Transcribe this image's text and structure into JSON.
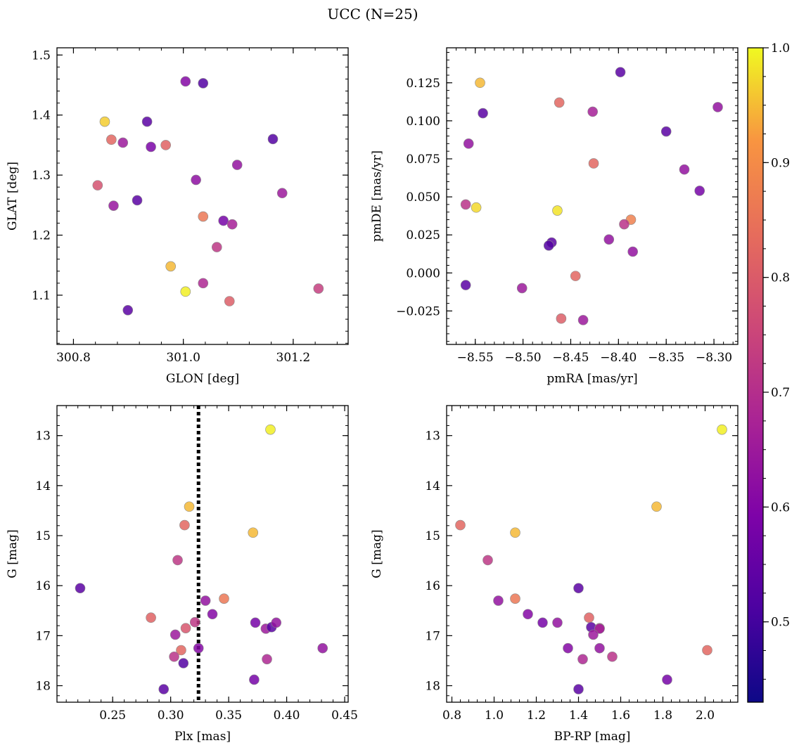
{
  "figure": {
    "title": "UCC (N=25)"
  },
  "colorbar": {
    "cmap": "plasma",
    "range": [
      0.43,
      1.0
    ],
    "ticks": [
      0.5,
      0.6,
      0.7,
      0.8,
      0.9,
      1.0
    ],
    "tick_labels": [
      "0.5",
      "0.6",
      "0.7",
      "0.8",
      "0.9",
      "1.0"
    ]
  },
  "chart_data": [
    {
      "type": "scatter",
      "xlabel": "GLON [deg]",
      "ylabel": "GLAT [deg]",
      "xlim": [
        300.77,
        301.3
      ],
      "ylim": [
        1.018,
        1.512
      ],
      "xticks": [
        300.8,
        301.0,
        301.2
      ],
      "xtick_labels": [
        "300.8",
        "301.0",
        "301.2"
      ],
      "yticks": [
        1.1,
        1.2,
        1.3,
        1.4,
        1.5
      ],
      "ytick_labels": [
        "1.1",
        "1.2",
        "1.3",
        "1.4",
        "1.5"
      ],
      "points": [
        {
          "x": 301.004,
          "y": 1.456,
          "c": 0.55
        },
        {
          "x": 301.036,
          "y": 1.453,
          "c": 0.46
        },
        {
          "x": 300.857,
          "y": 1.389,
          "c": 0.96
        },
        {
          "x": 300.934,
          "y": 1.389,
          "c": 0.47
        },
        {
          "x": 300.869,
          "y": 1.359,
          "c": 0.8
        },
        {
          "x": 300.89,
          "y": 1.354,
          "c": 0.6
        },
        {
          "x": 300.941,
          "y": 1.347,
          "c": 0.53
        },
        {
          "x": 300.968,
          "y": 1.35,
          "c": 0.79
        },
        {
          "x": 301.163,
          "y": 1.36,
          "c": 0.46
        },
        {
          "x": 301.098,
          "y": 1.317,
          "c": 0.58
        },
        {
          "x": 301.023,
          "y": 1.292,
          "c": 0.57
        },
        {
          "x": 300.844,
          "y": 1.283,
          "c": 0.75
        },
        {
          "x": 301.18,
          "y": 1.27,
          "c": 0.6
        },
        {
          "x": 300.916,
          "y": 1.258,
          "c": 0.47
        },
        {
          "x": 300.873,
          "y": 1.249,
          "c": 0.59
        },
        {
          "x": 301.036,
          "y": 1.231,
          "c": 0.84
        },
        {
          "x": 301.073,
          "y": 1.224,
          "c": 0.52
        },
        {
          "x": 301.089,
          "y": 1.218,
          "c": 0.62
        },
        {
          "x": 301.061,
          "y": 1.18,
          "c": 0.68
        },
        {
          "x": 300.977,
          "y": 1.148,
          "c": 0.94
        },
        {
          "x": 301.004,
          "y": 1.106,
          "c": 0.99
        },
        {
          "x": 301.036,
          "y": 1.12,
          "c": 0.64
        },
        {
          "x": 301.084,
          "y": 1.09,
          "c": 0.78
        },
        {
          "x": 301.246,
          "y": 1.111,
          "c": 0.7
        },
        {
          "x": 300.899,
          "y": 1.075,
          "c": 0.47
        }
      ]
    },
    {
      "type": "scatter",
      "xlabel": "pmRA [mas/yr]",
      "ylabel": "pmDE [mas/yr]",
      "xlim": [
        -8.58,
        -8.275
      ],
      "ylim": [
        -0.047,
        0.148
      ],
      "xticks": [
        -8.55,
        -8.5,
        -8.45,
        -8.4,
        -8.35,
        -8.3
      ],
      "xtick_labels": [
        "−8.55",
        "−8.50",
        "−8.45",
        "−8.40",
        "−8.35",
        "−8.30"
      ],
      "yticks": [
        -0.025,
        0.0,
        0.025,
        0.05,
        0.075,
        0.1,
        0.125
      ],
      "ytick_labels": [
        "−0.025",
        "0.000",
        "0.025",
        "0.050",
        "0.075",
        "0.100",
        "0.125"
      ],
      "points": [
        {
          "x": -8.398,
          "y": 0.132,
          "c": 0.47
        },
        {
          "x": -8.545,
          "y": 0.125,
          "c": 0.94
        },
        {
          "x": -8.462,
          "y": 0.112,
          "c": 0.8
        },
        {
          "x": -8.427,
          "y": 0.106,
          "c": 0.62
        },
        {
          "x": -8.296,
          "y": 0.109,
          "c": 0.58
        },
        {
          "x": -8.542,
          "y": 0.105,
          "c": 0.47
        },
        {
          "x": -8.35,
          "y": 0.093,
          "c": 0.47
        },
        {
          "x": -8.557,
          "y": 0.085,
          "c": 0.58
        },
        {
          "x": -8.426,
          "y": 0.072,
          "c": 0.8
        },
        {
          "x": -8.331,
          "y": 0.068,
          "c": 0.58
        },
        {
          "x": -8.315,
          "y": 0.054,
          "c": 0.52
        },
        {
          "x": -8.56,
          "y": 0.045,
          "c": 0.67
        },
        {
          "x": -8.549,
          "y": 0.043,
          "c": 0.97
        },
        {
          "x": -8.464,
          "y": 0.041,
          "c": 0.98
        },
        {
          "x": -8.387,
          "y": 0.035,
          "c": 0.86
        },
        {
          "x": -8.394,
          "y": 0.032,
          "c": 0.67
        },
        {
          "x": -8.41,
          "y": 0.022,
          "c": 0.58
        },
        {
          "x": -8.47,
          "y": 0.02,
          "c": 0.47
        },
        {
          "x": -8.473,
          "y": 0.018,
          "c": 0.46
        },
        {
          "x": -8.385,
          "y": 0.014,
          "c": 0.58
        },
        {
          "x": -8.445,
          "y": -0.002,
          "c": 0.8
        },
        {
          "x": -8.56,
          "y": -0.008,
          "c": 0.47
        },
        {
          "x": -8.501,
          "y": -0.01,
          "c": 0.6
        },
        {
          "x": -8.46,
          "y": -0.03,
          "c": 0.78
        },
        {
          "x": -8.437,
          "y": -0.031,
          "c": 0.6
        }
      ]
    },
    {
      "type": "scatter",
      "xlabel": "Plx [mas]",
      "ylabel": "G [mag]",
      "xlim": [
        0.202,
        0.453
      ],
      "ylim": [
        18.33,
        12.4
      ],
      "y_inverted": true,
      "xticks": [
        0.25,
        0.3,
        0.35,
        0.4,
        0.45
      ],
      "xtick_labels": [
        "0.25",
        "0.30",
        "0.35",
        "0.40",
        "0.45"
      ],
      "yticks": [
        13,
        14,
        15,
        16,
        17,
        18
      ],
      "ytick_labels": [
        "13",
        "14",
        "15",
        "16",
        "17",
        "18"
      ],
      "vline": {
        "x": 0.324,
        "style": "dotted"
      },
      "points": [
        {
          "x": 0.386,
          "y": 12.88,
          "c": 0.99
        },
        {
          "x": 0.316,
          "y": 14.42,
          "c": 0.94
        },
        {
          "x": 0.312,
          "y": 14.79,
          "c": 0.8
        },
        {
          "x": 0.371,
          "y": 14.94,
          "c": 0.94
        },
        {
          "x": 0.306,
          "y": 15.49,
          "c": 0.68
        },
        {
          "x": 0.222,
          "y": 16.05,
          "c": 0.47
        },
        {
          "x": 0.283,
          "y": 16.64,
          "c": 0.79
        },
        {
          "x": 0.346,
          "y": 16.26,
          "c": 0.84
        },
        {
          "x": 0.33,
          "y": 16.3,
          "c": 0.58
        },
        {
          "x": 0.336,
          "y": 16.57,
          "c": 0.55
        },
        {
          "x": 0.321,
          "y": 16.73,
          "c": 0.68
        },
        {
          "x": 0.313,
          "y": 16.85,
          "c": 0.76
        },
        {
          "x": 0.373,
          "y": 16.74,
          "c": 0.52
        },
        {
          "x": 0.382,
          "y": 16.86,
          "c": 0.6
        },
        {
          "x": 0.387,
          "y": 16.83,
          "c": 0.47
        },
        {
          "x": 0.391,
          "y": 16.74,
          "c": 0.58
        },
        {
          "x": 0.304,
          "y": 16.98,
          "c": 0.6
        },
        {
          "x": 0.309,
          "y": 17.29,
          "c": 0.8
        },
        {
          "x": 0.324,
          "y": 17.25,
          "c": 0.55
        },
        {
          "x": 0.303,
          "y": 17.42,
          "c": 0.67
        },
        {
          "x": 0.311,
          "y": 17.55,
          "c": 0.46
        },
        {
          "x": 0.383,
          "y": 17.47,
          "c": 0.64
        },
        {
          "x": 0.431,
          "y": 17.25,
          "c": 0.58
        },
        {
          "x": 0.372,
          "y": 17.88,
          "c": 0.52
        },
        {
          "x": 0.294,
          "y": 18.07,
          "c": 0.47
        }
      ]
    },
    {
      "type": "scatter",
      "xlabel": "BP-RP [mag]",
      "ylabel": "G [mag]",
      "xlim": [
        0.775,
        2.155
      ],
      "ylim": [
        18.33,
        12.4
      ],
      "y_inverted": true,
      "xticks": [
        0.8,
        1.0,
        1.2,
        1.4,
        1.6,
        1.8,
        2.0
      ],
      "xtick_labels": [
        "0.8",
        "1.0",
        "1.2",
        "1.4",
        "1.6",
        "1.8",
        "2.0"
      ],
      "yticks": [
        13,
        14,
        15,
        16,
        17,
        18
      ],
      "ytick_labels": [
        "13",
        "14",
        "15",
        "16",
        "17",
        "18"
      ],
      "points": [
        {
          "x": 2.08,
          "y": 12.88,
          "c": 0.99
        },
        {
          "x": 1.77,
          "y": 14.42,
          "c": 0.94
        },
        {
          "x": 0.84,
          "y": 14.79,
          "c": 0.8
        },
        {
          "x": 1.1,
          "y": 14.94,
          "c": 0.94
        },
        {
          "x": 0.97,
          "y": 15.49,
          "c": 0.68
        },
        {
          "x": 1.4,
          "y": 16.05,
          "c": 0.47
        },
        {
          "x": 1.02,
          "y": 16.3,
          "c": 0.58
        },
        {
          "x": 1.1,
          "y": 16.26,
          "c": 0.84
        },
        {
          "x": 1.16,
          "y": 16.57,
          "c": 0.55
        },
        {
          "x": 1.23,
          "y": 16.74,
          "c": 0.52
        },
        {
          "x": 1.3,
          "y": 16.74,
          "c": 0.58
        },
        {
          "x": 1.45,
          "y": 16.64,
          "c": 0.79
        },
        {
          "x": 1.46,
          "y": 16.83,
          "c": 0.47
        },
        {
          "x": 1.5,
          "y": 16.85,
          "c": 0.76
        },
        {
          "x": 1.5,
          "y": 16.86,
          "c": 0.6
        },
        {
          "x": 1.47,
          "y": 16.98,
          "c": 0.6
        },
        {
          "x": 1.35,
          "y": 17.25,
          "c": 0.55
        },
        {
          "x": 1.5,
          "y": 17.25,
          "c": 0.58
        },
        {
          "x": 1.42,
          "y": 17.47,
          "c": 0.64
        },
        {
          "x": 1.56,
          "y": 17.42,
          "c": 0.67
        },
        {
          "x": 2.01,
          "y": 17.29,
          "c": 0.8
        },
        {
          "x": 1.82,
          "y": 17.88,
          "c": 0.52
        },
        {
          "x": 1.4,
          "y": 18.07,
          "c": 0.47
        }
      ]
    }
  ]
}
